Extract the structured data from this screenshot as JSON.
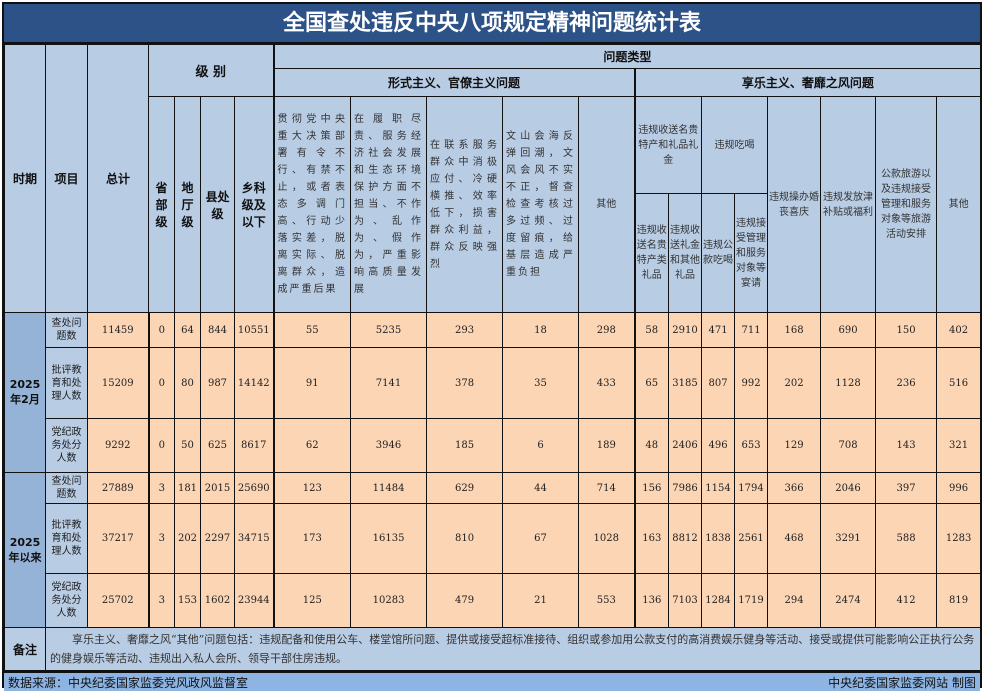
{
  "title": "全国查处违反中央八项规定精神问题统计表",
  "header": {
    "period": "时期",
    "item": "项目",
    "total": "总计",
    "level": "级 别",
    "issue_type": "问题类型",
    "levels": [
      "省部级",
      "地厅级",
      "县处级",
      "乡科级及以下"
    ],
    "formalism": "形式主义、官僚主义问题",
    "hedonism": "享乐主义、奢靡之风问题",
    "formalism_cols": [
      "贯彻党中央重大决策部署有令不行、有禁不止，或者表态多调门高、行动少落实差，脱离实际、脱离群众，造成严重后果",
      "在履职尽责、服务经济社会发展和生态环境保护方面不担当、不作为、乱作为、假作为，严重影响高质量发展",
      "在联系服务群众中消极应付、冷硬横推、效率低下，损害群众利益，群众反映强烈",
      "文山会海反弹回潮，文风会风不实不正，督查检查考核过多过频、过度留痕，给基层造成严重负担",
      "其他"
    ],
    "gift_group": "违规收送名贵特产和礼品礼金",
    "gift_subs": [
      "违规收送名贵特产类礼品",
      "违规收送礼金和其他礼品"
    ],
    "eat_group": "违规吃喝",
    "eat_subs": [
      "违规公款吃喝",
      "违规接受管理和服务对象等宴请"
    ],
    "hedonism_cols": [
      "违规操办婚丧喜庆",
      "违规发放津补贴或福利",
      "公款旅游以及违规接受管理和服务对象等旅游活动安排",
      "其他"
    ]
  },
  "periods": [
    {
      "label": "2025年2月",
      "rows": [
        {
          "item": "查处问题数",
          "values": [
            11459,
            0,
            64,
            844,
            10551,
            55,
            5235,
            293,
            18,
            298,
            58,
            2910,
            471,
            711,
            168,
            690,
            150,
            402
          ]
        },
        {
          "item": "批评教育和处理人数",
          "values": [
            15209,
            0,
            80,
            987,
            14142,
            91,
            7141,
            378,
            35,
            433,
            65,
            3185,
            807,
            992,
            202,
            1128,
            236,
            516
          ]
        },
        {
          "item": "党纪政务处分人数",
          "values": [
            9292,
            0,
            50,
            625,
            8617,
            62,
            3946,
            185,
            6,
            189,
            48,
            2406,
            496,
            653,
            129,
            708,
            143,
            321
          ]
        }
      ]
    },
    {
      "label": "2025年以来",
      "rows": [
        {
          "item": "查处问题数",
          "values": [
            27889,
            3,
            181,
            2015,
            25690,
            123,
            11484,
            629,
            44,
            714,
            156,
            7986,
            1154,
            1794,
            366,
            2046,
            397,
            996
          ]
        },
        {
          "item": "批评教育和处理人数",
          "values": [
            37217,
            3,
            202,
            2297,
            34715,
            173,
            16135,
            810,
            67,
            1028,
            163,
            8812,
            1838,
            2561,
            468,
            3291,
            588,
            1283
          ]
        },
        {
          "item": "党纪政务处分人数",
          "values": [
            25702,
            3,
            153,
            1602,
            23944,
            125,
            10283,
            479,
            21,
            553,
            136,
            7103,
            1284,
            1719,
            294,
            2474,
            412,
            819
          ]
        }
      ]
    }
  ],
  "note": {
    "label": "备注",
    "text": "享乐主义、奢靡之风“其他”问题包括：违规配备和使用公车、楼堂馆所问题、提供或接受超标准接待、组织或参加用公款支付的高消费娱乐健身等活动、接受或提供可能影响公正执行公务的健身娱乐等活动、违规出入私人会所、领导干部住房违规。"
  },
  "footer": {
    "source": "数据来源：中央纪委国家监委党风政风监督室",
    "credit": "中央纪委国家监委网站  制图"
  },
  "colors": {
    "title_bg": "#2c5288",
    "header_bg": "#b8cce4",
    "period_bg": "#95b3d7",
    "cell_bg": "#fcd5b4",
    "footer_bg": "#8db4e2"
  }
}
